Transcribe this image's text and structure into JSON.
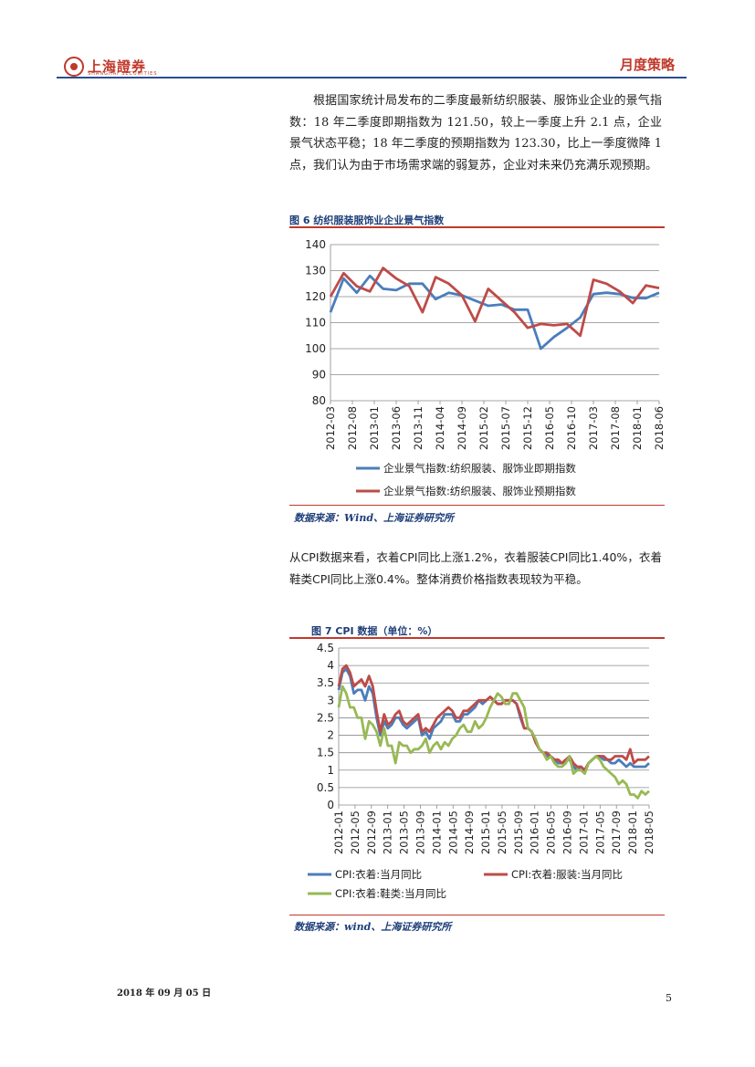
{
  "header": {
    "logo_text": "上海證券",
    "logo_sub": "SHANGHAI SECURITIES",
    "section_title": "月度策略"
  },
  "paragraphs": {
    "p1": "根据国家统计局发布的二季度最新纺织服装、服饰业企业的景气指数：18 年二季度即期指数为 121.50，较上一季度上升 2.1 点，企业景气状态平稳；18 年二季度的预期指数为 123.30，比上一季度微降 1 点，我们认为由于市场需求端的弱复苏，企业对未来仍充满乐观预期。",
    "p2": "从CPI数据来看，衣着CPI同比上涨1.2%，衣着服装CPI同比1.40%，衣着鞋类CPI同比上涨0.4%。整体消费价格指数表现较为平稳。"
  },
  "figure6": {
    "title": "图 6 纺织服装服饰业企业景气指数",
    "source": "数据来源：Wind、上海证券研究所"
  },
  "figure7": {
    "title": "图 7 CPI 数据（单位：%）",
    "source": "数据来源：wind、上海证券研究所"
  },
  "footer": {
    "date": "2018 年 09 月 05 日",
    "page": "5"
  },
  "colors": {
    "blue": "#4a7ebb",
    "red": "#be4b48",
    "green": "#98b954",
    "accent": "#c0392b",
    "title_blue": "#1f3f7a"
  },
  "chart_data": [
    {
      "type": "line",
      "x": [
        "2012-03",
        "2012-06",
        "2012-09",
        "2012-12",
        "2013-03",
        "2013-06",
        "2013-09",
        "2013-12",
        "2014-03",
        "2014-06",
        "2014-09",
        "2014-12",
        "2015-03",
        "2015-06",
        "2015-09",
        "2015-12",
        "2016-03",
        "2016-06",
        "2016-09",
        "2016-12",
        "2017-03",
        "2017-06",
        "2017-09",
        "2017-12",
        "2018-03",
        "2018-06"
      ],
      "tick_labels": [
        "2012-03",
        "2012-08",
        "2013-01",
        "2013-06",
        "2013-11",
        "2014-04",
        "2014-09",
        "2015-02",
        "2015-07",
        "2015-12",
        "2016-05",
        "2016-10",
        "2017-03",
        "2017-08",
        "2018-01",
        "2018-06"
      ],
      "ylim": [
        80,
        140
      ],
      "yticks": [
        80,
        90,
        100,
        110,
        120,
        130,
        140
      ],
      "grid": true,
      "legend_position": "bottom",
      "series": [
        {
          "name": "企业景气指数:纺织服装、服饰业即期指数",
          "color": "#4a7ebb",
          "values": [
            114,
            127,
            121.5,
            128,
            123,
            122.5,
            125,
            125,
            119,
            121.5,
            120.5,
            118.5,
            116.5,
            117,
            115,
            115,
            100,
            104.5,
            108,
            112,
            121,
            121.5,
            121,
            119.5,
            119.4,
            121.5
          ]
        },
        {
          "name": "企业景气指数:纺织服装、服饰业预期指数",
          "color": "#be4b48",
          "values": [
            120,
            129,
            124,
            122,
            131,
            127,
            124,
            114,
            127.5,
            125,
            120.5,
            110.5,
            123,
            118.5,
            114,
            108,
            109.5,
            109,
            109.5,
            105,
            126.5,
            125,
            122,
            117.5,
            124.3,
            123.3
          ]
        }
      ]
    },
    {
      "type": "line",
      "tick_labels": [
        "2012-01",
        "2012-05",
        "2012-09",
        "2013-01",
        "2013-05",
        "2013-09",
        "2014-01",
        "2014-05",
        "2014-09",
        "2015-01",
        "2015-05",
        "2015-09",
        "2016-01",
        "2016-05",
        "2016-09",
        "2017-01",
        "2017-05",
        "2017-09",
        "2018-01",
        "2018-05"
      ],
      "ylim": [
        0,
        4.5
      ],
      "yticks": [
        0,
        0.5,
        1,
        1.5,
        2,
        2.5,
        3,
        3.5,
        4,
        4.5
      ],
      "grid": true,
      "legend_position": "bottom",
      "series": [
        {
          "name": "CPI:衣着:当月同比",
          "color": "#4a7ebb",
          "values": [
            3.3,
            3.8,
            3.9,
            3.7,
            3.2,
            3.3,
            3.3,
            3.0,
            3.4,
            3.2,
            2.5,
            2.0,
            2.4,
            2.2,
            2.3,
            2.5,
            2.5,
            2.3,
            2.2,
            2.3,
            2.4,
            2.5,
            2.0,
            2.1,
            1.9,
            2.2,
            2.3,
            2.4,
            2.6,
            2.6,
            2.6,
            2.4,
            2.4,
            2.6,
            2.6,
            2.7,
            2.8,
            3.0,
            2.9,
            3.0,
            3.1,
            3.0,
            2.9,
            2.9,
            3.0,
            3.0,
            3.0,
            2.9,
            2.5,
            2.2,
            2.2,
            2.1,
            1.8,
            1.6,
            1.5,
            1.4,
            1.4,
            1.3,
            1.2,
            1.2,
            1.3,
            1.3,
            1.1,
            1.0,
            1.1,
            1.0,
            1.2,
            1.3,
            1.4,
            1.4,
            1.3,
            1.3,
            1.2,
            1.2,
            1.3,
            1.2,
            1.1,
            1.2,
            1.1,
            1.1,
            1.1,
            1.1,
            1.2
          ]
        },
        {
          "name": "CPI:衣着:服装:当月同比",
          "color": "#be4b48",
          "values": [
            3.4,
            3.9,
            4.0,
            3.8,
            3.4,
            3.5,
            3.6,
            3.4,
            3.7,
            3.4,
            2.7,
            2.1,
            2.6,
            2.3,
            2.4,
            2.6,
            2.7,
            2.4,
            2.3,
            2.4,
            2.5,
            2.6,
            2.1,
            2.2,
            2.1,
            2.3,
            2.5,
            2.6,
            2.7,
            2.8,
            2.7,
            2.5,
            2.5,
            2.7,
            2.7,
            2.8,
            2.9,
            3.0,
            3.0,
            3.0,
            3.1,
            3.0,
            2.9,
            2.9,
            3.0,
            3.0,
            3.0,
            2.9,
            2.6,
            2.2,
            2.2,
            2.1,
            1.8,
            1.6,
            1.5,
            1.5,
            1.4,
            1.3,
            1.3,
            1.2,
            1.3,
            1.4,
            1.2,
            1.1,
            1.1,
            1.0,
            1.2,
            1.3,
            1.4,
            1.4,
            1.4,
            1.3,
            1.3,
            1.4,
            1.4,
            1.4,
            1.3,
            1.6,
            1.2,
            1.3,
            1.3,
            1.3,
            1.4
          ]
        },
        {
          "name": "CPI:衣着:鞋类:当月同比",
          "color": "#98b954",
          "values": [
            2.8,
            3.4,
            3.2,
            2.8,
            2.8,
            2.5,
            2.5,
            1.9,
            2.4,
            2.3,
            2.1,
            1.7,
            2.2,
            1.7,
            1.7,
            1.2,
            1.8,
            1.7,
            1.7,
            1.5,
            1.6,
            1.6,
            1.7,
            1.9,
            1.5,
            1.7,
            1.8,
            1.6,
            1.8,
            1.7,
            1.9,
            2.0,
            2.2,
            2.3,
            2.1,
            2.1,
            2.4,
            2.2,
            2.3,
            2.5,
            2.8,
            3.0,
            3.2,
            3.1,
            2.9,
            2.9,
            3.2,
            3.2,
            3.0,
            2.8,
            2.2,
            2.1,
            1.9,
            1.6,
            1.5,
            1.3,
            1.4,
            1.2,
            1.1,
            1.1,
            1.2,
            1.4,
            0.9,
            1.0,
            1.0,
            0.9,
            1.2,
            1.3,
            1.4,
            1.3,
            1.1,
            1.0,
            0.9,
            0.8,
            0.6,
            0.7,
            0.6,
            0.3,
            0.3,
            0.2,
            0.4,
            0.3,
            0.4
          ]
        }
      ]
    }
  ]
}
